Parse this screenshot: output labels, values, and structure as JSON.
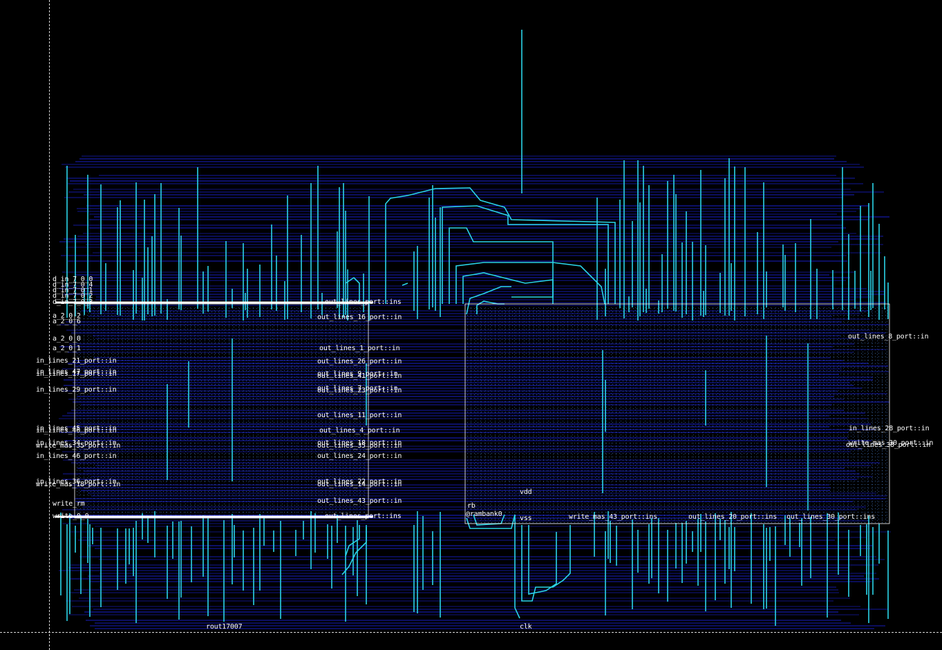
{
  "layout": {
    "colors": {
      "background": "#000000",
      "metal_h": "#1a22d6",
      "metal_v": "#2ad4e8",
      "outline": "#ffffff",
      "text": "#ffffff",
      "dots": "#5aa0ff"
    }
  },
  "labels": {
    "left_stack_1": "d_in_7_0_0",
    "left_stack_2": "d_in_7_0_4",
    "left_stack_3": "d_in_7_0_1",
    "left_stack_4": "d_in_7_0_2",
    "left_top_row": "d_in_7_0_3",
    "top_row_right": "out_lines_port::ins",
    "a_2_0_2": "a_2_0_2",
    "a_2_0_6": "a_2_0_6",
    "a_2_0_0": "a_2_0_0",
    "a_2_0_1": "a_2_0_1",
    "in_lines_21": "in_lines_21_port::in",
    "in_lines_47": "in_lines_47_port::in",
    "in_lines_17": "in_lines_17_port::in",
    "in_lines_29": "in_lines_29_port::in",
    "in_lines_45": "in_lines_45_port::in",
    "in_lines_46a": "in_lines_46_port::in",
    "in_lines_34": "in_lines_34_port::in",
    "write_mas_35": "write_mas_35_port::in",
    "in_lines_46": "in_lines_46_port::in",
    "in_lines_36": "in_lines_36_port::in",
    "write_mas_18": "write_mas_18_port::in",
    "write_rm": "write_rm",
    "bottom_row_left": "write_0_0",
    "bottom_row_right": "out_lines_port::ins",
    "out_lines_16": "out_lines_16_port::in",
    "out_lines_1": "out_lines_1_port::in",
    "out_lines_26": "out_lines_26_port::in",
    "out_lines_9": "out_lines_9_port::in",
    "out_lines_41": "out_lines_41_port::in",
    "out_lines_7": "out_lines_7_port::in",
    "out_lines_23": "out_lines_23_port::in",
    "out_lines_11": "out_lines_11_port::in",
    "out_lines_4": "out_lines_4_port::in",
    "out_lines_18": "out_lines_18_port::in",
    "out_lines_35": "out_lines_35_port::in",
    "out_lines_24": "out_lines_24_port::in",
    "out_lines_22": "out_lines_22_port::in",
    "out_lines_14": "out_lines_14_port::in",
    "out_lines_43": "out_lines_43_port::in",
    "out_lines_8": "out_lines_8_port::in",
    "in_lines_28": "in_lines_28_port::in",
    "write_mas_30": "write_mas_30_port::in",
    "out_lines_38": "out_lines_38_port::in",
    "rb": "rb",
    "rambank": "@rambank0",
    "vdd": "vdd",
    "vss": "vss",
    "write_mas_43": "write_mas_43_port::ins",
    "out_lines_20": "out_lines_20_port::ins",
    "out_lines_30": "out_lines_30_port::ins",
    "clk": "clk",
    "bottom_cluster": "rout17007"
  }
}
